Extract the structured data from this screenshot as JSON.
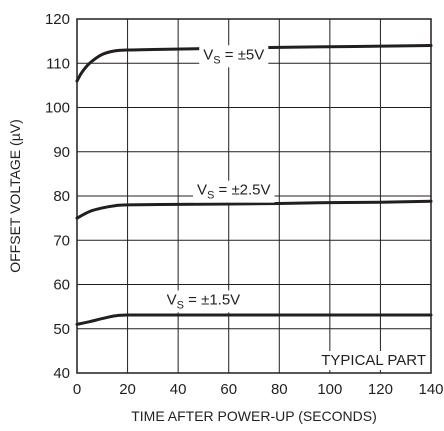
{
  "chart_data": {
    "type": "line",
    "title": "",
    "xlabel": "TIME AFTER POWER-UP (SECONDS)",
    "ylabel": "OFFSET VOLTAGE (µV)",
    "xlim": [
      0,
      140
    ],
    "ylim": [
      40,
      120
    ],
    "x_ticks": [
      "0",
      "20",
      "40",
      "60",
      "80",
      "100",
      "120",
      "140"
    ],
    "y_ticks": [
      "40",
      "50",
      "60",
      "70",
      "80",
      "90",
      "100",
      "110",
      "120"
    ],
    "grid": true,
    "series": [
      {
        "name": "VS = ±5V",
        "label_main": "V",
        "label_sub": "S",
        "label_rest": " = ±5V",
        "x": [
          0,
          2,
          5,
          10,
          15,
          20,
          30,
          50,
          80,
          110,
          140
        ],
        "y": [
          106,
          108,
          110,
          112,
          112.8,
          113,
          113.1,
          113.3,
          113.6,
          113.8,
          114
        ]
      },
      {
        "name": "VS = ±2.5V",
        "label_main": "V",
        "label_sub": "S",
        "label_rest": " = ±2.5V",
        "x": [
          0,
          5,
          10,
          15,
          20,
          40,
          60,
          80,
          100,
          120,
          140
        ],
        "y": [
          75,
          76.5,
          77.3,
          77.8,
          78,
          78.1,
          78.2,
          78.3,
          78.5,
          78.6,
          78.8
        ]
      },
      {
        "name": "VS = ±1.5V",
        "label_main": "V",
        "label_sub": "S",
        "label_rest": " = ±1.5V",
        "x": [
          0,
          5,
          10,
          15,
          20,
          40,
          80,
          140
        ],
        "y": [
          51,
          51.6,
          52.3,
          52.9,
          53.1,
          53.1,
          53.1,
          53.1
        ]
      }
    ],
    "annotation": "TYPICAL PART"
  }
}
